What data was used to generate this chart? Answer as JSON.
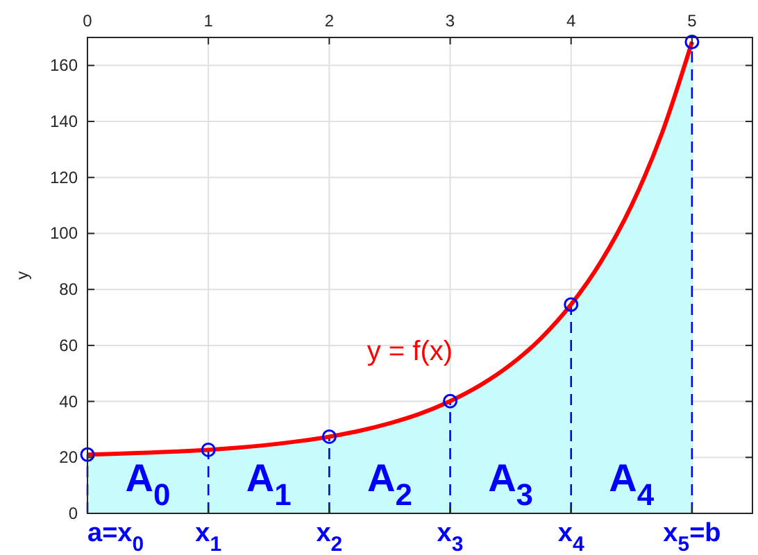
{
  "chart_data": {
    "type": "area",
    "ylabel": "y",
    "xlim": [
      0,
      5.5
    ],
    "xticks": [
      0,
      1,
      2,
      3,
      4,
      5
    ],
    "ylim": [
      0,
      170
    ],
    "yticks": [
      0,
      20,
      40,
      60,
      80,
      100,
      120,
      140,
      160
    ],
    "grid": true,
    "series": [
      {
        "color": "#c8fcfc",
        "x": [
          0,
          0.25,
          0.5,
          0.75,
          1,
          1.25,
          1.5,
          1.75,
          2,
          2.25,
          2.5,
          2.75,
          3,
          3.25,
          3.5,
          3.75,
          4,
          4.25,
          4.5,
          4.75,
          5
        ],
        "values": [
          21,
          21.3,
          21.7,
          22.1,
          22.7,
          23.5,
          24.5,
          25.8,
          27.4,
          29.5,
          32.2,
          35.6,
          40.1,
          45.8,
          53.1,
          62.5,
          74.6,
          90.1,
          110,
          135.6,
          168.4
        ]
      },
      {
        "type": "line",
        "name": "y = f(x)",
        "color": "#ff0000",
        "line_style": "solid",
        "marker": "none",
        "x": [
          0,
          0.25,
          0.5,
          0.75,
          1,
          1.25,
          1.5,
          1.75,
          2,
          2.25,
          2.5,
          2.75,
          3,
          3.25,
          3.5,
          3.75,
          4,
          4.25,
          4.5,
          4.75,
          5
        ],
        "values": [
          21,
          21.3,
          21.7,
          22.1,
          22.7,
          23.5,
          24.5,
          25.8,
          27.4,
          29.5,
          32.2,
          35.6,
          40.1,
          45.8,
          53.1,
          62.5,
          74.6,
          90.1,
          110,
          135.6,
          168.4
        ]
      },
      {
        "type": "scatter",
        "color": "#0000ff",
        "marker": "circle",
        "x": [
          0,
          1,
          2,
          3,
          4,
          5
        ],
        "values": [
          21,
          22.7,
          27.4,
          40.1,
          74.6,
          168.4
        ]
      }
    ],
    "ref_lines": [
      {
        "axis": "x",
        "value": 0,
        "label": "a=x$_{0}$",
        "color": "#0000ff",
        "line_style": "dashed"
      },
      {
        "axis": "x",
        "value": 1,
        "label": "x$_{1}$",
        "color": "#0000ff",
        "line_style": "dashed"
      },
      {
        "axis": "x",
        "value": 2,
        "label": "x$_{2}$",
        "color": "#0000ff",
        "line_style": "dashed"
      },
      {
        "axis": "x",
        "value": 3,
        "label": "x$_{3}$",
        "color": "#0000ff",
        "line_style": "dashed"
      },
      {
        "axis": "x",
        "value": 4,
        "label": "x$_{4}$",
        "color": "#0000ff",
        "line_style": "dashed"
      },
      {
        "axis": "x",
        "value": 5,
        "label": "x$_{5}$=b",
        "color": "#0000ff",
        "line_style": "dashed"
      }
    ],
    "annotations": [
      "A$_{0}$",
      "A$_{1}$",
      "A$_{2}$",
      "A$_{3}$",
      "A$_{4}$"
    ]
  }
}
